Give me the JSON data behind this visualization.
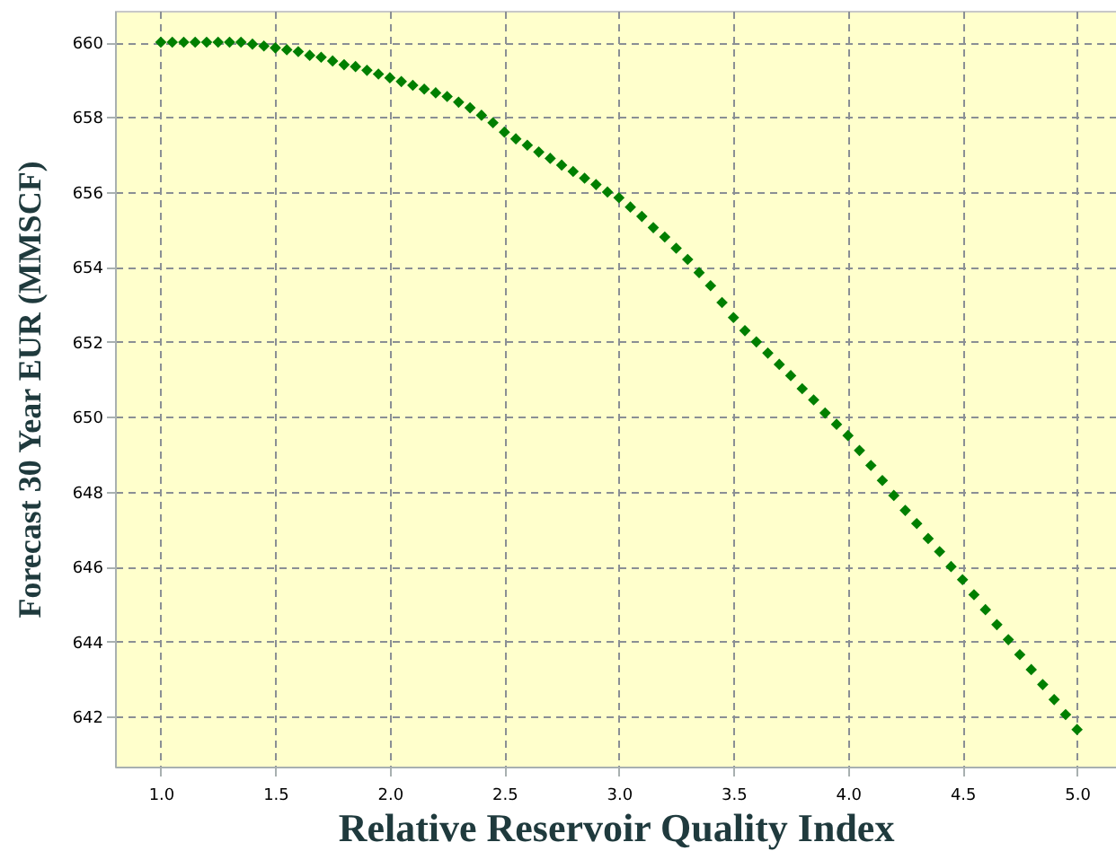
{
  "chart_data": {
    "type": "scatter",
    "xlabel": "Relative Reservoir Quality Index",
    "ylabel": "Forecast 30 Year EUR (MMSCF)",
    "x": [
      1.0,
      1.05,
      1.1,
      1.15,
      1.2,
      1.25,
      1.3,
      1.35,
      1.4,
      1.45,
      1.5,
      1.55,
      1.6,
      1.65,
      1.7,
      1.75,
      1.8,
      1.85,
      1.9,
      1.95,
      2.0,
      2.05,
      2.1,
      2.15,
      2.2,
      2.25,
      2.3,
      2.35,
      2.4,
      2.45,
      2.5,
      2.55,
      2.6,
      2.65,
      2.7,
      2.75,
      2.8,
      2.85,
      2.9,
      2.95,
      3.0,
      3.05,
      3.1,
      3.15,
      3.2,
      3.25,
      3.3,
      3.35,
      3.4,
      3.45,
      3.5,
      3.55,
      3.6,
      3.65,
      3.7,
      3.75,
      3.8,
      3.85,
      3.9,
      3.95,
      4.0,
      4.05,
      4.1,
      4.15,
      4.2,
      4.25,
      4.3,
      4.35,
      4.4,
      4.45,
      4.5,
      4.55,
      4.6,
      4.65,
      4.7,
      4.75,
      4.8,
      4.85,
      4.9,
      4.95,
      5.0
    ],
    "series": [
      {
        "color": "#007f00",
        "values": [
          660.0,
          660.0,
          660.0,
          660.0,
          660.0,
          660.0,
          660.0,
          660.0,
          659.95,
          659.9,
          659.85,
          659.8,
          659.75,
          659.65,
          659.6,
          659.5,
          659.4,
          659.35,
          659.25,
          659.15,
          659.05,
          658.95,
          658.85,
          658.75,
          658.65,
          658.55,
          658.4,
          658.25,
          658.05,
          657.85,
          657.6,
          657.42,
          657.25,
          657.07,
          656.9,
          656.72,
          656.55,
          656.37,
          656.2,
          656.0,
          655.85,
          655.6,
          655.35,
          655.05,
          654.8,
          654.5,
          654.2,
          653.85,
          653.5,
          653.05,
          652.65,
          652.3,
          652.0,
          651.7,
          651.4,
          651.1,
          650.75,
          650.45,
          650.1,
          649.8,
          649.5,
          649.1,
          648.7,
          648.3,
          647.9,
          647.5,
          647.15,
          646.75,
          646.4,
          646.0,
          645.65,
          645.25,
          644.85,
          644.45,
          644.05,
          643.65,
          643.25,
          642.85,
          642.45,
          642.05,
          641.65
        ]
      }
    ],
    "xlim": [
      0.8,
      5.17
    ],
    "ylim": [
      640.66,
      660.84
    ],
    "xticks": [
      {
        "value": 1,
        "label": "1.0"
      },
      1.5,
      {
        "value": 2,
        "label": "2.0"
      },
      2.5,
      {
        "value": 3,
        "label": "3.0"
      },
      3.5,
      {
        "value": 4,
        "label": "4.0"
      },
      4.5,
      {
        "value": 5,
        "label": "5.0"
      }
    ],
    "yticks": [
      642,
      644,
      646,
      648,
      650,
      652,
      654,
      656,
      658,
      660
    ],
    "grid": true,
    "marker": "diamond",
    "legend": false
  }
}
